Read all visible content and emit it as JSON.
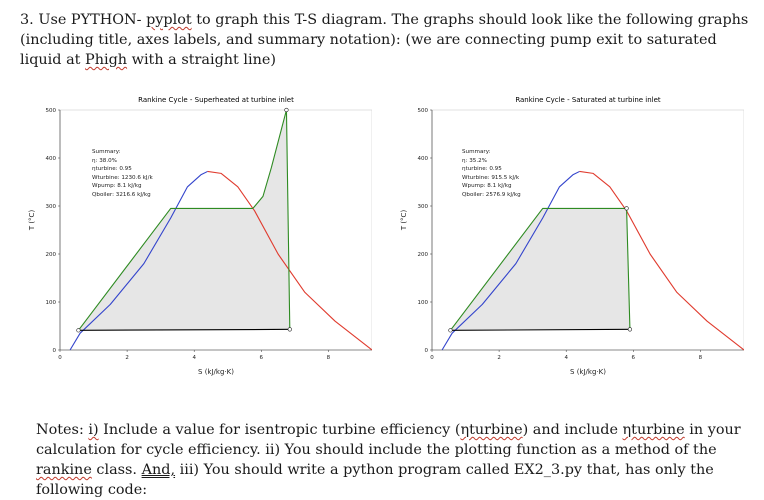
{
  "question": {
    "number": "3.",
    "pre": "Use PYTHON- ",
    "lib": "pyplot",
    "mid": " to graph this T-S diagram.  The graphs should look like the following graphs (including title, axes labels, and summary notation): (we are connecting pump exit to saturated liquid at ",
    "p_high": "Phigh",
    "post": " with a straight line)"
  },
  "charts": [
    {
      "title": "Rankine Cycle - Superheated at turbine inlet",
      "summary": {
        "heading": "Summary:",
        "eta": "η: 38.0%",
        "eta_turbine": "ηturbine: 0.95",
        "w_turbine": "Wturbine: 1230.6 kJ/k",
        "w_pump": "Wpump: 8.1 kJ/kg",
        "q_boiler": "Qboiler: 3216.6 kJ/kg"
      }
    },
    {
      "title": "Rankine Cycle - Saturated at turbine inlet",
      "summary": {
        "heading": "Summary:",
        "eta": "η: 35.2%",
        "eta_turbine": "ηturbine: 0.95",
        "w_turbine": "Wturbine: 915.5 kJ/k",
        "w_pump": "Wpump: 8.1 kJ/kg",
        "q_boiler": "Qboiler: 2576.9 kJ/kg"
      }
    }
  ],
  "axes": {
    "ylabel": "T (°C)",
    "xlabel": "S (kJ/kg·K)",
    "yticks": [
      "0",
      "100",
      "200",
      "300",
      "400",
      "500"
    ],
    "xticks": [
      "0",
      "2",
      "4",
      "6",
      "8"
    ]
  },
  "notes": {
    "a": "Notes: ",
    "b": "i)",
    "c": " Include a value for isentropic turbine efficiency (",
    "d": "ηturbine",
    "e": ") and include ",
    "f": "ηturbine",
    "g": " in your calculation for cycle efficiency.  ii) You should include the plotting function as a method of the ",
    "h": "rankine",
    "i": " class.  ",
    "j": "And,",
    "k": " iii) You should write a python program called EX2_3.py that, has only the following code:"
  },
  "chart_data": [
    {
      "type": "line",
      "title": "Rankine Cycle - Superheated at turbine inlet",
      "xlabel": "S (kJ/kg·K)",
      "ylabel": "T (°C)",
      "xlim": [
        0,
        9.3
      ],
      "ylim": [
        0,
        500
      ],
      "series": [
        {
          "color": "#3344cc",
          "x": [
            0.3,
            0.6,
            1.5,
            2.5,
            3.3,
            3.8,
            4.2,
            4.4
          ],
          "y": [
            0,
            35,
            95,
            180,
            275,
            340,
            365,
            372
          ]
        },
        {
          "color": "#e03b2e",
          "x": [
            4.4,
            4.8,
            5.3,
            5.8,
            6.5,
            7.3,
            8.2,
            9.3
          ],
          "y": [
            372,
            368,
            340,
            290,
            200,
            120,
            60,
            0
          ]
        },
        {
          "color": "#2e8b22",
          "x": [
            0.55,
            3.3,
            5.75,
            6.05,
            6.3,
            6.75,
            6.85
          ],
          "y": [
            41,
            295,
            295,
            320,
            380,
            500,
            43
          ]
        },
        {
          "color": "#000000",
          "x": [
            0.55,
            6.85
          ],
          "y": [
            41,
            43
          ]
        }
      ]
    },
    {
      "type": "line",
      "title": "Rankine Cycle - Saturated at turbine inlet",
      "xlabel": "S (kJ/kg·K)",
      "ylabel": "T (°C)",
      "xlim": [
        0,
        9.3
      ],
      "ylim": [
        0,
        500
      ],
      "series": [
        {
          "color": "#3344cc",
          "x": [
            0.3,
            0.6,
            1.5,
            2.5,
            3.3,
            3.8,
            4.2,
            4.4
          ],
          "y": [
            0,
            35,
            95,
            180,
            275,
            340,
            365,
            372
          ]
        },
        {
          "color": "#e03b2e",
          "x": [
            4.4,
            4.8,
            5.3,
            5.8,
            6.5,
            7.3,
            8.2,
            9.3
          ],
          "y": [
            372,
            368,
            340,
            290,
            200,
            120,
            60,
            0
          ]
        },
        {
          "color": "#2e8b22",
          "x": [
            0.55,
            3.3,
            5.8,
            5.9
          ],
          "y": [
            41,
            295,
            295,
            43
          ]
        },
        {
          "color": "#000000",
          "x": [
            0.55,
            5.9
          ],
          "y": [
            41,
            43
          ]
        }
      ]
    }
  ]
}
